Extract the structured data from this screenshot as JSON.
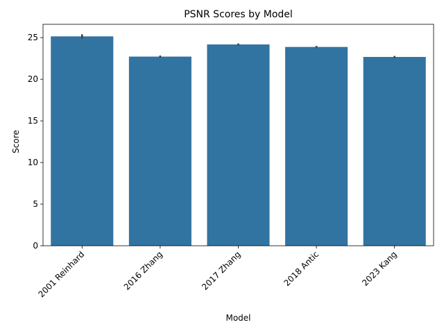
{
  "chart_data": {
    "type": "bar",
    "title": "PSNR Scores by Model",
    "xlabel": "Model",
    "ylabel": "Score",
    "categories": [
      "2001 Reinhard",
      "2016 Zhang",
      "2017 Zhang",
      "2018 Antic",
      "2023 Kang"
    ],
    "values": [
      25.15,
      22.72,
      24.18,
      23.88,
      22.68
    ],
    "error_bars": [
      {
        "low": 24.9,
        "high": 25.4
      },
      {
        "low": 22.6,
        "high": 22.85
      },
      {
        "low": 24.05,
        "high": 24.3
      },
      {
        "low": 23.75,
        "high": 24.0
      },
      {
        "low": 22.55,
        "high": 22.8
      }
    ],
    "ylim": [
      0,
      26.6
    ],
    "yticks": [
      0,
      5,
      10,
      15,
      20,
      25
    ],
    "grid": false,
    "bar_color": "#3274a1",
    "error_color": "#424242"
  }
}
